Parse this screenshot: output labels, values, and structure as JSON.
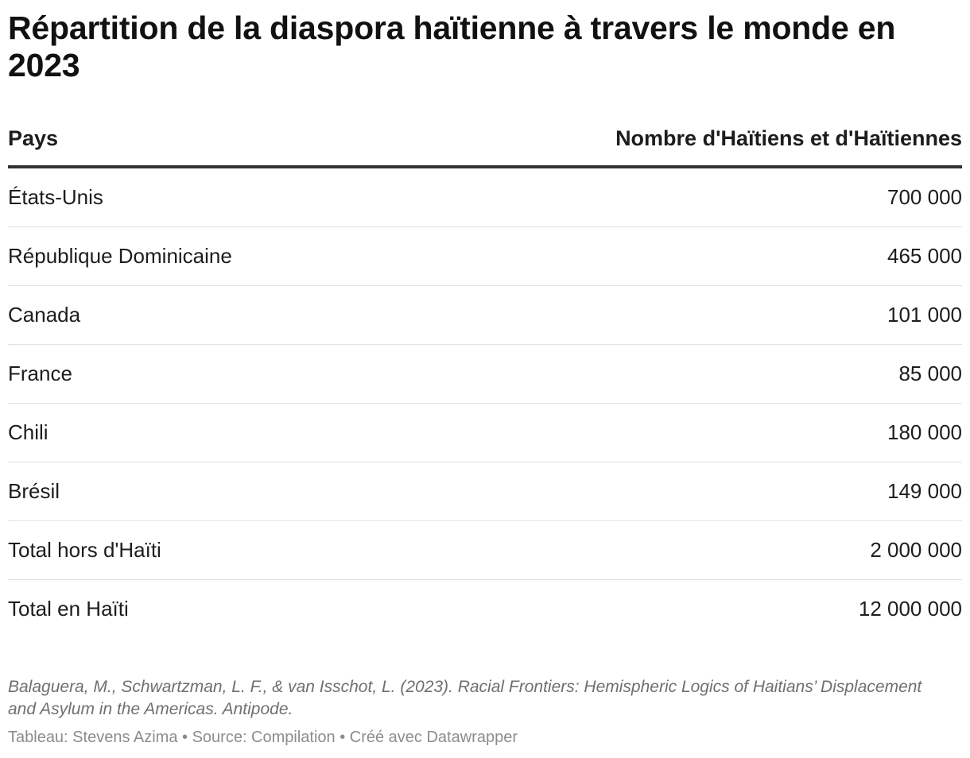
{
  "title": "Répartition de la diaspora haïtienne à travers le monde en 2023",
  "chart_data": {
    "type": "table",
    "columns": [
      "Pays",
      "Nombre d'Haïtiens et d'Haïtiennes"
    ],
    "rows": [
      {
        "country": "États-Unis",
        "value": 700000,
        "display": "700 000"
      },
      {
        "country": "République Dominicaine",
        "value": 465000,
        "display": "465 000"
      },
      {
        "country": "Canada",
        "value": 101000,
        "display": "101 000"
      },
      {
        "country": "France",
        "value": 85000,
        "display": "85 000"
      },
      {
        "country": "Chili",
        "value": 180000,
        "display": "180 000"
      },
      {
        "country": "Brésil",
        "value": 149000,
        "display": "149 000"
      },
      {
        "country": "Total hors d'Haïti",
        "value": 2000000,
        "display": "2 000 000"
      },
      {
        "country": "Total en Haïti",
        "value": 12000000,
        "display": "12 000 000"
      }
    ]
  },
  "notes": "Balaguera, M., Schwartzman, L. F., & van Isschot, L. (2023). Racial Frontiers: Hemispheric Logics of Haitians’ Displacement and Asylum in the Americas. Antipode.",
  "footer": "Tableau: Stevens Azima • Source: Compilation • Créé avec Datawrapper"
}
